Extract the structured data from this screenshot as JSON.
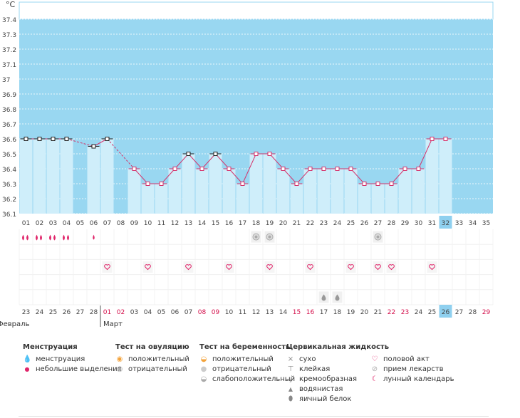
{
  "colors": {
    "sky": "#99d7f1",
    "bar": "#cfeefa",
    "line": "#d4346c",
    "grid_light": "#ececec",
    "pink": "#e0256a",
    "gray_icon": "#999999",
    "highlight": "#8fd0ef"
  },
  "chart_data": {
    "type": "line",
    "title": "",
    "unit": "°C",
    "ylim": [
      36.1,
      37.4
    ],
    "y_ticks": [
      "37.4",
      "37.3",
      "37.2",
      "37.1",
      "37",
      "36.9",
      "36.8",
      "36.7",
      "36.6",
      "36.5",
      "36.4",
      "36.3",
      "36.2",
      "36.1"
    ],
    "cycle_days": [
      "01",
      "02",
      "03",
      "04",
      "05",
      "06",
      "07",
      "08",
      "09",
      "10",
      "11",
      "12",
      "13",
      "14",
      "15",
      "16",
      "17",
      "18",
      "19",
      "20",
      "21",
      "22",
      "23",
      "24",
      "25",
      "26",
      "27",
      "28",
      "29",
      "30",
      "31",
      "32",
      "33",
      "34",
      "35"
    ],
    "current_cycle_day": "32",
    "temperatures": [
      36.6,
      36.6,
      36.6,
      36.6,
      null,
      36.55,
      36.6,
      null,
      36.4,
      36.3,
      36.3,
      36.4,
      36.5,
      36.4,
      36.5,
      36.4,
      36.3,
      36.5,
      36.5,
      36.4,
      36.3,
      36.4,
      36.4,
      36.4,
      36.4,
      36.3,
      36.3,
      36.3,
      36.4,
      36.4,
      36.6,
      36.6,
      null,
      null,
      null
    ],
    "black_markers": [
      "01",
      "02",
      "03",
      "04",
      "06",
      "07",
      "13",
      "15"
    ],
    "dashed_segments": [
      [
        "04",
        "06"
      ],
      [
        "07",
        "09"
      ]
    ],
    "calendar_dates": [
      "23",
      "24",
      "25",
      "26",
      "27",
      "28",
      "01",
      "02",
      "03",
      "04",
      "05",
      "06",
      "07",
      "08",
      "09",
      "10",
      "11",
      "12",
      "13",
      "14",
      "15",
      "16",
      "17",
      "18",
      "19",
      "20",
      "21",
      "22",
      "23",
      "24",
      "25",
      "26",
      "27",
      "28",
      "29"
    ],
    "weekend_cycle_days": [
      "07",
      "08",
      "14",
      "15",
      "21",
      "22",
      "28",
      "29",
      "35"
    ],
    "today_cycle_day": "32",
    "months": [
      {
        "label": "Февраль",
        "start_day": "01"
      },
      {
        "label": "Март",
        "start_day": "07"
      }
    ],
    "menstruation_days": [
      "01",
      "02",
      "03",
      "04"
    ],
    "spotting_days": [
      "06"
    ],
    "ovulation_negative_days": [
      "18",
      "19",
      "27"
    ],
    "intercourse_days": [
      "07",
      "10",
      "13",
      "16",
      "19",
      "22",
      "25",
      "27",
      "28",
      "31"
    ],
    "cervical_egg_white_days": [
      "23",
      "24"
    ]
  },
  "legend": {
    "menstruation": {
      "title": "Менструация",
      "items": [
        "менструация",
        "небольшие выделения"
      ]
    },
    "ovulation": {
      "title": "Тест на овуляцию",
      "items": [
        "положительный",
        "отрицательный"
      ]
    },
    "pregnancy": {
      "title": "Тест на беременность",
      "items": [
        "положительный",
        "отрицательный",
        "слабоположительный"
      ]
    },
    "cervical": {
      "title": "Цервикальная жидкость",
      "items": [
        "сухо",
        "клейкая",
        "кремообразная",
        "водянистая",
        "яичный белок"
      ]
    },
    "other": {
      "items": [
        "половой акт",
        "прием лекарств",
        "лунный календарь"
      ]
    }
  }
}
